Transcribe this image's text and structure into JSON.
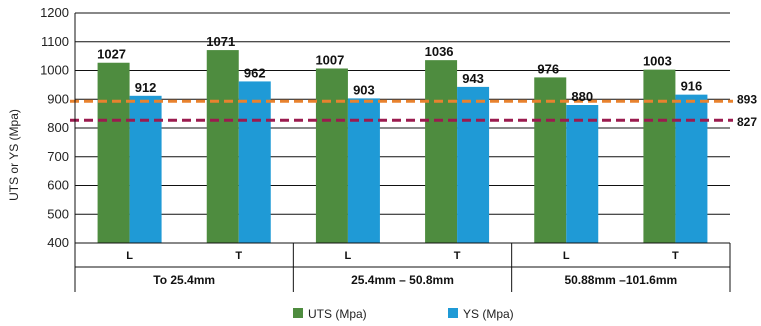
{
  "chart_data": {
    "type": "bar",
    "ylabel": "UTS or YS (Mpa)",
    "ylim": [
      400,
      1200
    ],
    "yticks": [
      400,
      500,
      600,
      700,
      800,
      900,
      1000,
      1100,
      1200
    ],
    "groups": [
      {
        "label": "To 25.4mm",
        "categories": [
          "L",
          "T"
        ]
      },
      {
        "label": "25.4mm – 50.8mm",
        "categories": [
          "L",
          "T"
        ]
      },
      {
        "label": "50.88mm –101.6mm",
        "categories": [
          "L",
          "T"
        ]
      }
    ],
    "series": [
      {
        "name": "UTS (Mpa)",
        "color": "#4e8c3f",
        "values": [
          1027,
          1071,
          1007,
          1036,
          976,
          1003
        ]
      },
      {
        "name": "YS (Mpa)",
        "color": "#1f9ad6",
        "values": [
          912,
          962,
          903,
          943,
          880,
          916
        ]
      }
    ],
    "reference_lines": [
      {
        "value": 893,
        "label": "893",
        "color": "#e8822e"
      },
      {
        "value": 827,
        "label": "827",
        "color": "#9b1b4f"
      }
    ],
    "legend_position": "bottom",
    "grid": true
  }
}
